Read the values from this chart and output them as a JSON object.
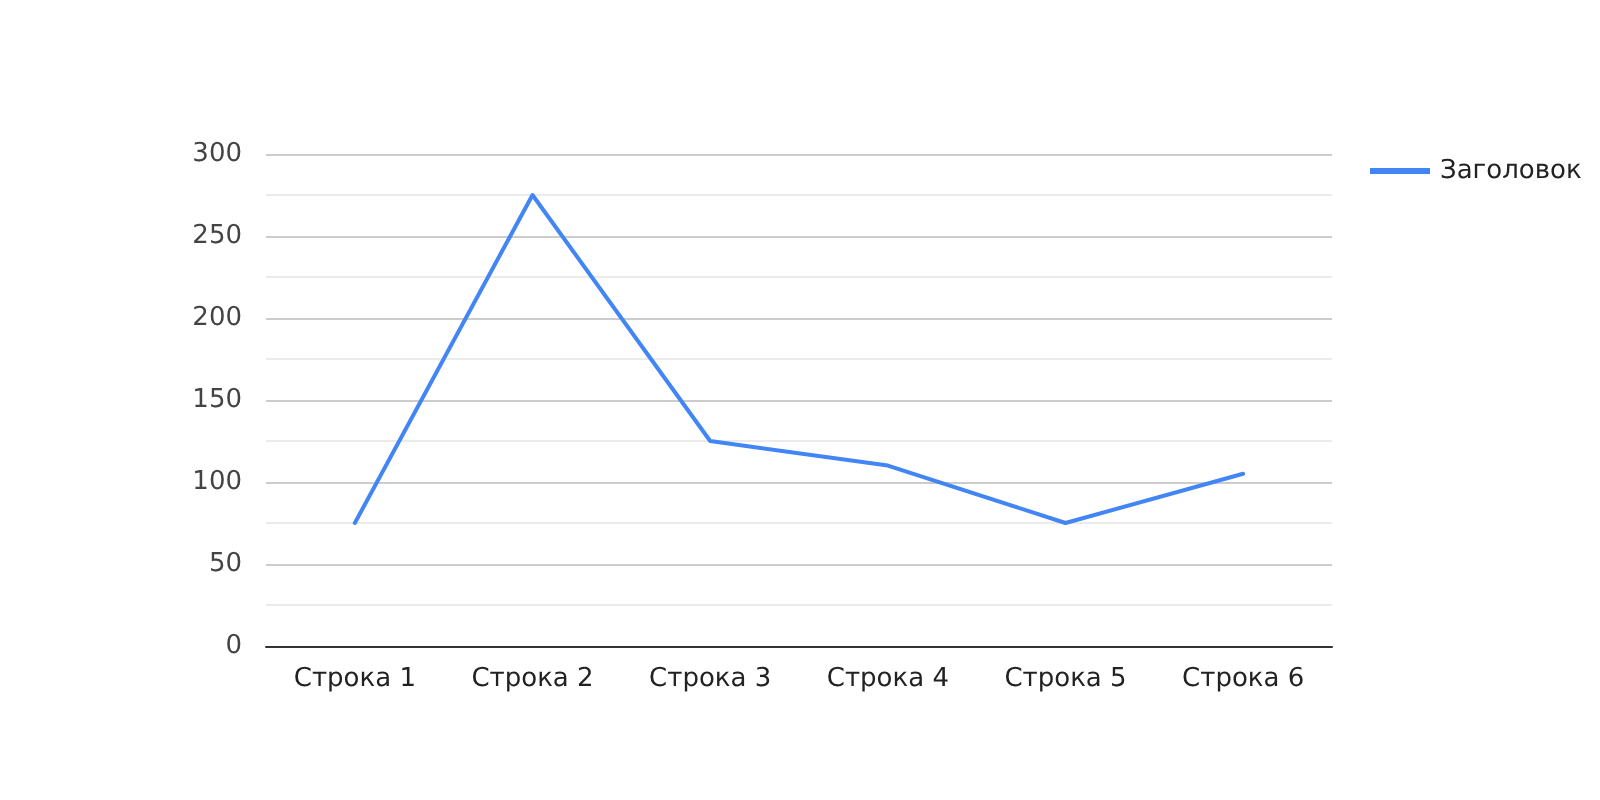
{
  "chart_data": {
    "type": "line",
    "categories": [
      "Строка 1",
      "Строка 2",
      "Строка 3",
      "Строка 4",
      "Строка 5",
      "Строка 6"
    ],
    "series": [
      {
        "name": "Заголовок",
        "color": "#4285f4",
        "values": [
          75,
          275,
          125,
          110,
          75,
          105
        ]
      }
    ],
    "ylim": [
      0,
      300
    ],
    "yticks": [
      0,
      {
        "value": 25,
        "label": null
      },
      50,
      {
        "value": 75,
        "label": null
      },
      100,
      {
        "value": 125,
        "label": null
      },
      150,
      {
        "value": 175,
        "label": null
      },
      200,
      {
        "value": 225,
        "label": null
      },
      250,
      {
        "value": 275,
        "label": null
      },
      300
    ],
    "grid": "y",
    "legend": "top right",
    "marker": "none",
    "line_style": "solid"
  }
}
